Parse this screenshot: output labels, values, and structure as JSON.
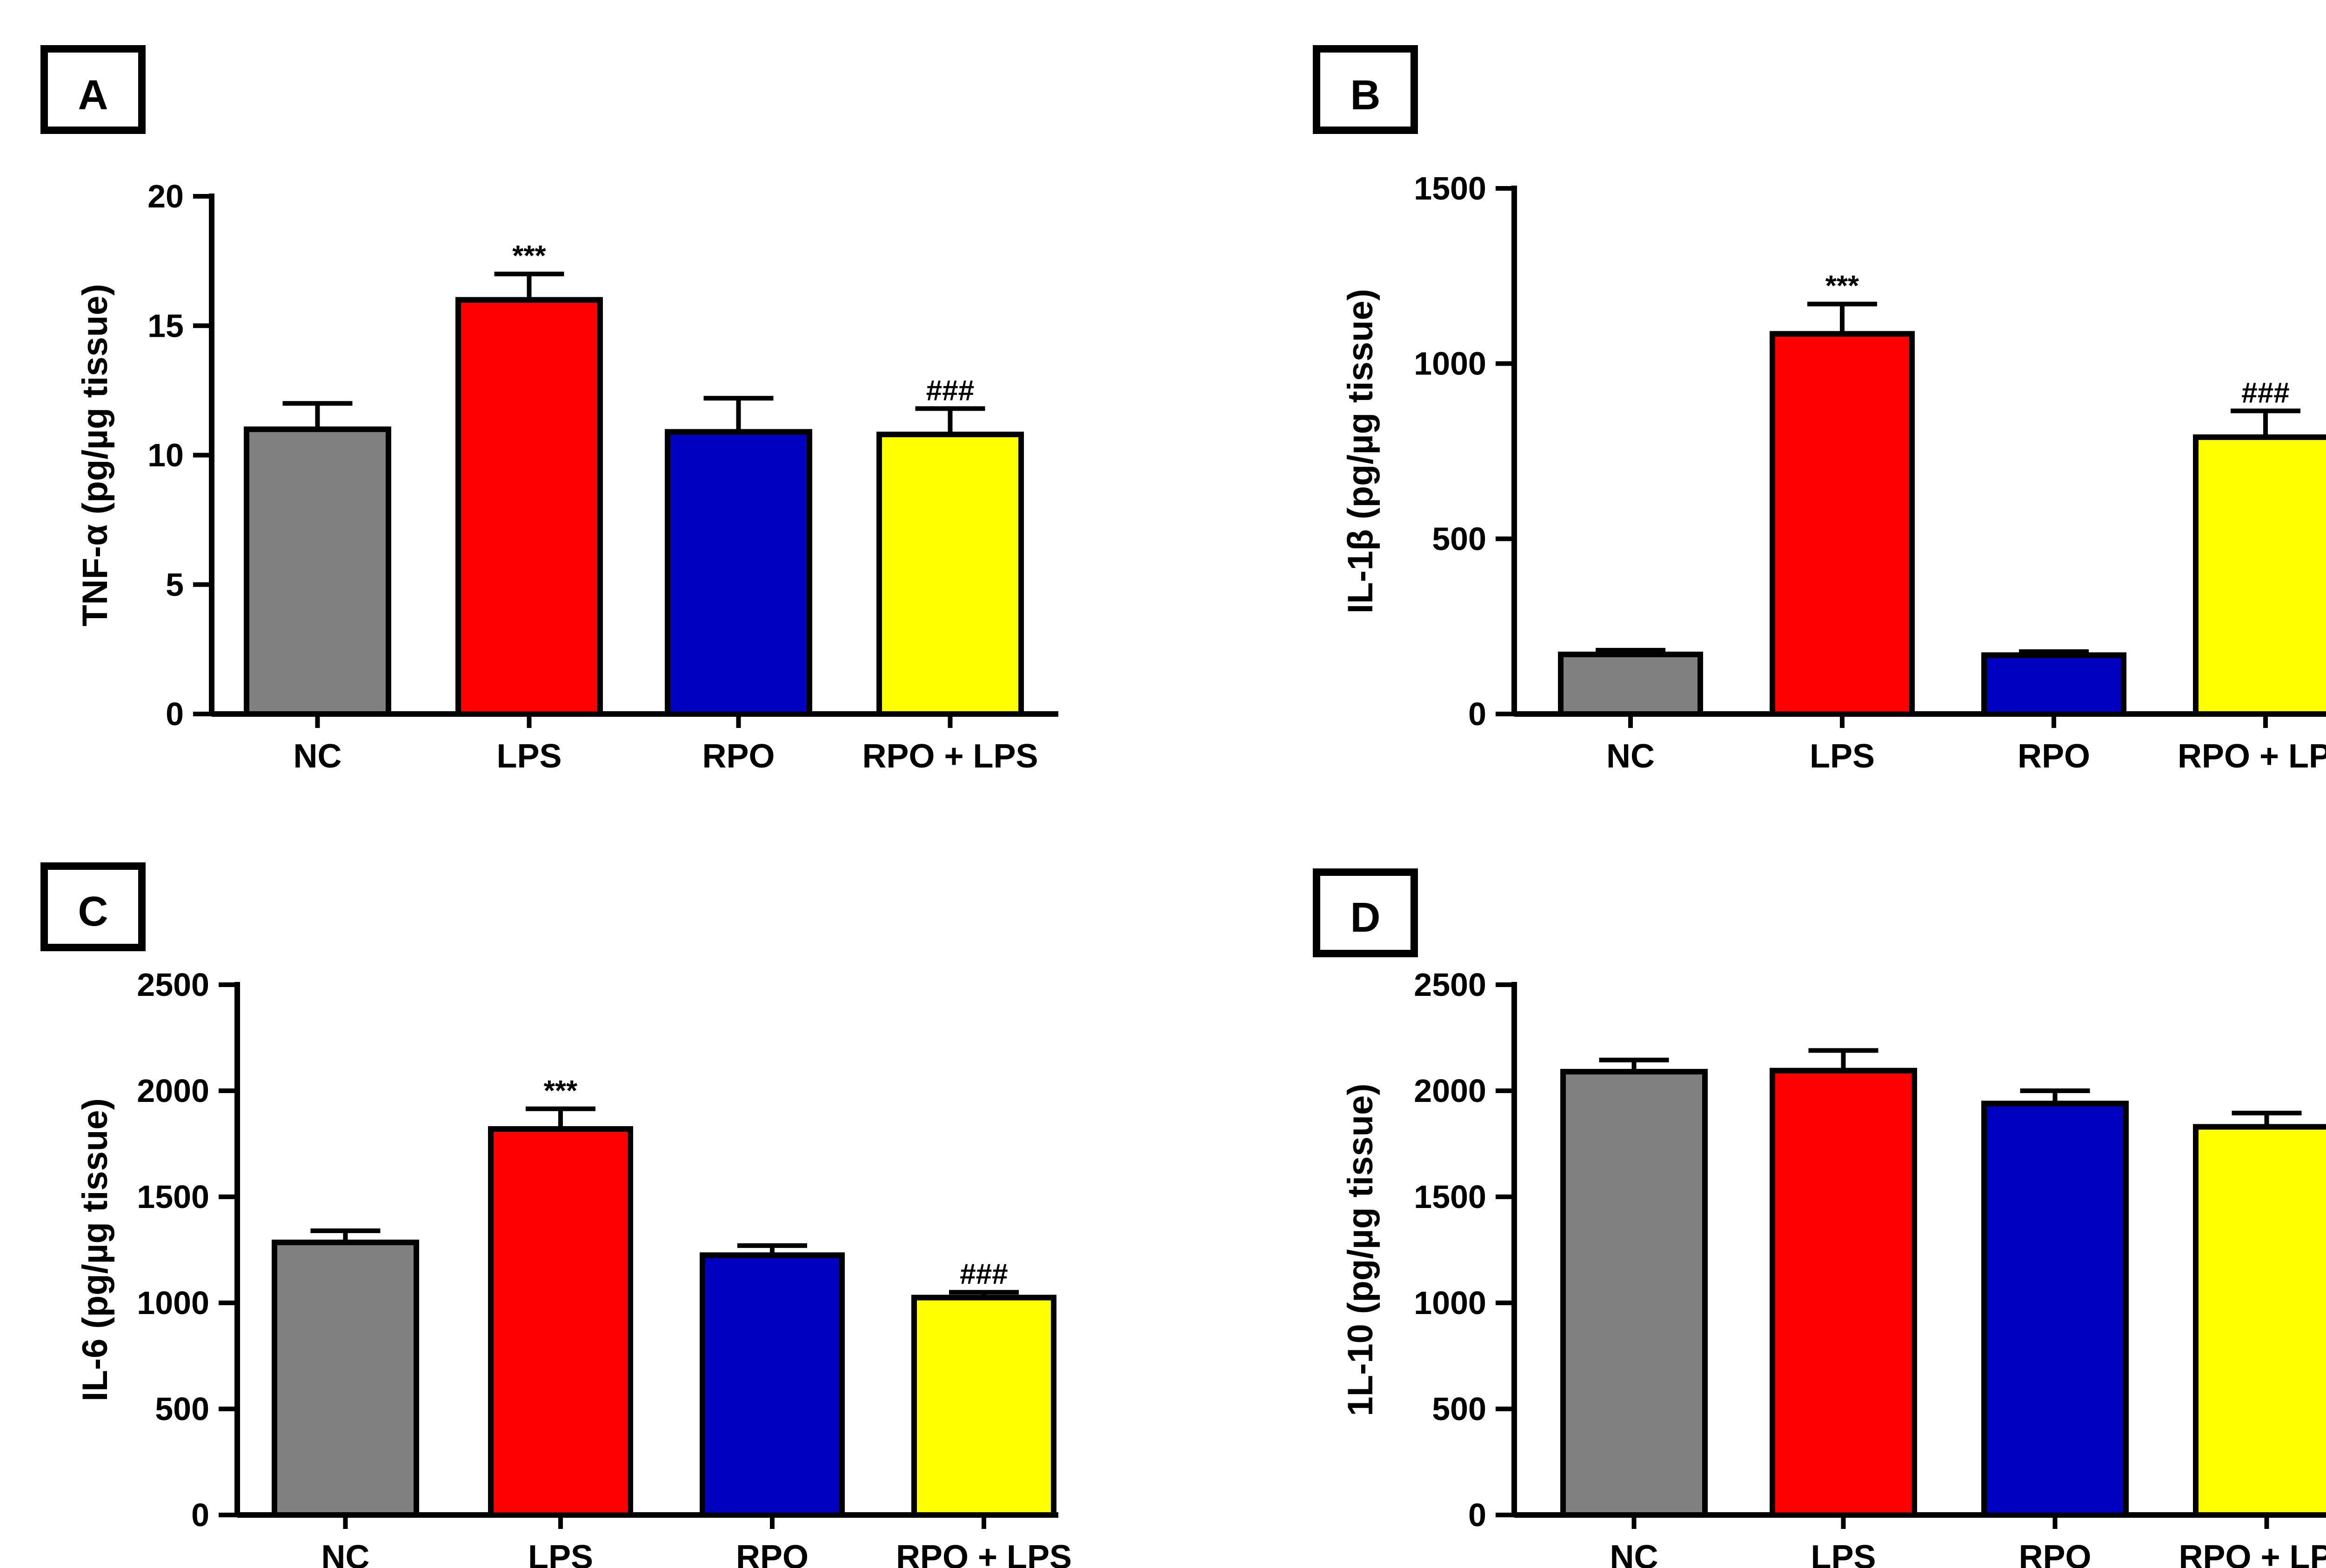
{
  "panels": [
    {
      "letter": "A"
    },
    {
      "letter": "B"
    },
    {
      "letter": "C"
    },
    {
      "letter": "D"
    }
  ],
  "chart_data": [
    {
      "type": "bar",
      "panel": "A",
      "categories": [
        "NC",
        "LPS",
        "RPO",
        "RPO + LPS"
      ],
      "values": [
        11.0,
        16.0,
        10.9,
        10.8
      ],
      "errors": [
        1.0,
        1.0,
        1.3,
        1.0
      ],
      "annotations": [
        "",
        "***",
        "",
        "###"
      ],
      "colors": [
        "#808080",
        "#ff0000",
        "#0000c0",
        "#ffff00"
      ],
      "ylabel": "TNF-α  (pg/µg tissue)",
      "ylim": [
        0,
        20
      ],
      "yticks": [
        0,
        5,
        10,
        15,
        20
      ]
    },
    {
      "type": "bar",
      "panel": "B",
      "categories": [
        "NC",
        "LPS",
        "RPO",
        "RPO + LPS"
      ],
      "values": [
        170,
        1085,
        168,
        790
      ],
      "errors": [
        12,
        85,
        10,
        75
      ],
      "annotations": [
        "",
        "***",
        "",
        "###"
      ],
      "colors": [
        "#808080",
        "#ff0000",
        "#0000c0",
        "#ffff00"
      ],
      "ylabel": "IL-1β  (pg/µg tissue)",
      "ylim": [
        0,
        1500
      ],
      "yticks": [
        0,
        500,
        1000,
        1500
      ]
    },
    {
      "type": "bar",
      "panel": "C",
      "categories": [
        "NC",
        "LPS",
        "RPO",
        "RPO + LPS"
      ],
      "values": [
        1285,
        1820,
        1225,
        1025
      ],
      "errors": [
        55,
        95,
        45,
        25
      ],
      "annotations": [
        "",
        "***",
        "",
        "###"
      ],
      "colors": [
        "#808080",
        "#ff0000",
        "#0000c0",
        "#ffff00"
      ],
      "ylabel": "IL-6 (pg/µg tissue)",
      "ylim": [
        0,
        2500
      ],
      "yticks": [
        0,
        500,
        1000,
        1500,
        2000,
        2500
      ]
    },
    {
      "type": "bar",
      "panel": "D",
      "categories": [
        "NC",
        "LPS",
        "RPO",
        "RPO + LPS"
      ],
      "values": [
        2090,
        2095,
        1940,
        1830
      ],
      "errors": [
        55,
        95,
        60,
        65
      ],
      "annotations": [
        "",
        "",
        "",
        ""
      ],
      "colors": [
        "#808080",
        "#ff0000",
        "#0000c0",
        "#ffff00"
      ],
      "ylabel": "1L-10 (pg/µg tissue)",
      "ylim": [
        0,
        2500
      ],
      "yticks": [
        0,
        500,
        1000,
        1500,
        2000,
        2500
      ]
    }
  ]
}
